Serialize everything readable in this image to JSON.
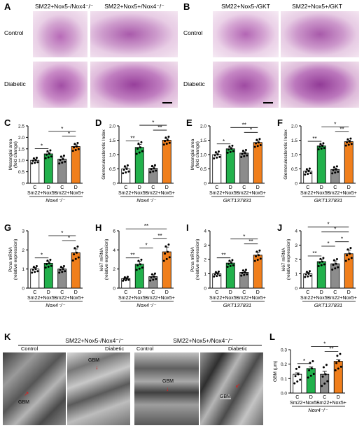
{
  "figure": {
    "panelA": {
      "letter": "A",
      "columns": [
        "SM22+Nox5-/Nox4⁻/⁻",
        "SM22+Nox5+/Nox4⁻/⁻"
      ],
      "rows": [
        "Control",
        "Diabetic"
      ]
    },
    "panelB": {
      "letter": "B",
      "columns": [
        "SM22+Nox5-/GKT",
        "SM22+Nox5+/GKT"
      ],
      "rows": [
        "Control",
        "Diabetic"
      ]
    },
    "panelK": {
      "letter": "K",
      "groups": [
        "SM22+Nox5-/Nox4⁻/⁻",
        "SM22+Nox5+/Nox4⁻/⁻"
      ],
      "conditions": [
        "Control",
        "Diabetic"
      ],
      "gbm_label": "GBM"
    },
    "colors": {
      "C_nox5neg": "#ffffff",
      "D_nox5neg": "#22b14c",
      "C_nox5pos": "#8c8c8c",
      "D_nox5pos": "#f07f1c",
      "he_stain": "#c98bc7",
      "tem": "#6a6a6a"
    }
  },
  "chart_data": [
    {
      "type": "bar",
      "panel": "C",
      "ylabel": "Mesangial area\n(fold change)",
      "ylim": [
        0,
        2.5
      ],
      "yticks": [
        "0",
        "0.5",
        "1.0",
        "1.5",
        "2.0",
        "2.5"
      ],
      "categories": [
        "C",
        "D",
        "C",
        "D"
      ],
      "values": [
        1.0,
        1.28,
        1.05,
        1.6
      ],
      "errors": [
        0.05,
        0.08,
        0.08,
        0.08
      ],
      "groups": [
        "Sm22+Nox5-",
        "Sm22+Nox5+"
      ],
      "footer": "Nox4⁻/⁻",
      "sig": [
        {
          "a": 0,
          "b": 1,
          "label": "*"
        },
        {
          "a": 2,
          "b": 3,
          "label": "*"
        },
        {
          "a": 1,
          "b": 3,
          "label": "*"
        }
      ]
    },
    {
      "type": "bar",
      "panel": "D",
      "ylabel": "Glomerulosclerotic Index",
      "ylim": [
        0,
        2.0
      ],
      "yticks": [
        "0",
        "0.5",
        "1.0",
        "1.5",
        "2.0"
      ],
      "categories": [
        "C",
        "D",
        "C",
        "D"
      ],
      "values": [
        0.5,
        1.25,
        0.52,
        1.5
      ],
      "errors": [
        0.06,
        0.1,
        0.05,
        0.06
      ],
      "groups": [
        "Sm22+Nox5-",
        "Sm22+Nox5+"
      ],
      "footer": "Nox4⁻/⁻",
      "sig": [
        {
          "a": 0,
          "b": 1,
          "label": "**"
        },
        {
          "a": 2,
          "b": 3,
          "label": "**"
        },
        {
          "a": 1,
          "b": 3,
          "label": "*"
        }
      ]
    },
    {
      "type": "bar",
      "panel": "E",
      "ylabel": "Mesangial area\n(fold change)",
      "ylim": [
        0,
        2.0
      ],
      "yticks": [
        "0",
        "0.5",
        "1.0",
        "1.5",
        "2.0"
      ],
      "categories": [
        "C",
        "D",
        "C",
        "D"
      ],
      "values": [
        1.0,
        1.2,
        1.05,
        1.42
      ],
      "errors": [
        0.05,
        0.05,
        0.05,
        0.06
      ],
      "groups": [
        "Sm22+Nox5-",
        "Sm22+Nox5+"
      ],
      "footer": "GKT137831",
      "sig": [
        {
          "a": 0,
          "b": 1,
          "label": "*"
        },
        {
          "a": 2,
          "b": 3,
          "label": "*"
        },
        {
          "a": 1,
          "b": 3,
          "label": "**"
        }
      ]
    },
    {
      "type": "bar",
      "panel": "F",
      "ylabel": "Glomerulosclerotic Index",
      "ylim": [
        0,
        2.0
      ],
      "yticks": [
        "0",
        "0.5",
        "1.0",
        "1.5",
        "2.0"
      ],
      "categories": [
        "C",
        "D",
        "C",
        "D"
      ],
      "values": [
        0.42,
        1.3,
        0.48,
        1.45
      ],
      "errors": [
        0.04,
        0.04,
        0.05,
        0.05
      ],
      "groups": [
        "Sm22+Nox5-",
        "Sm22+Nox5+"
      ],
      "footer": "GKT137831",
      "sig": [
        {
          "a": 0,
          "b": 1,
          "label": "**"
        },
        {
          "a": 2,
          "b": 3,
          "label": "**"
        },
        {
          "a": 1,
          "b": 3,
          "label": "*"
        }
      ]
    },
    {
      "type": "bar",
      "panel": "G",
      "ylabel": "Pcna mRNA\n(relative expression)",
      "ylim": [
        0,
        3
      ],
      "yticks": [
        "0",
        "1",
        "2",
        "3"
      ],
      "categories": [
        "C",
        "D",
        "C",
        "D"
      ],
      "values": [
        1.0,
        1.3,
        1.0,
        1.85
      ],
      "errors": [
        0.08,
        0.1,
        0.08,
        0.2
      ],
      "groups": [
        "Sm22+Nox5-",
        "Sm22+Nox5+"
      ],
      "footer": "Nox4⁻/⁻",
      "sig": [
        {
          "a": 0,
          "b": 1,
          "label": "*"
        },
        {
          "a": 2,
          "b": 3,
          "label": "*"
        },
        {
          "a": 1,
          "b": 3,
          "label": "*"
        }
      ]
    },
    {
      "type": "bar",
      "panel": "H",
      "ylabel": "ki67 mRNA\n(relative expression)",
      "ylim": [
        0,
        6
      ],
      "yticks": [
        "0",
        "2",
        "4",
        "6"
      ],
      "categories": [
        "C",
        "D",
        "C",
        "D"
      ],
      "values": [
        1.0,
        2.5,
        1.2,
        3.8
      ],
      "errors": [
        0.1,
        0.3,
        0.2,
        0.5
      ],
      "groups": [
        "Sm22+Nox5-",
        "Sm22+Nox5+"
      ],
      "footer": "Nox4⁻/⁻",
      "sig": [
        {
          "a": 0,
          "b": 1,
          "label": "**"
        },
        {
          "a": 2,
          "b": 3,
          "label": "**"
        },
        {
          "a": 1,
          "b": 2,
          "label": "*"
        },
        {
          "a": 0,
          "b": 3,
          "label": "**"
        }
      ]
    },
    {
      "type": "bar",
      "panel": "I",
      "ylabel": "Pcna mRNA\n(relative expression)",
      "ylim": [
        0,
        4
      ],
      "yticks": [
        "0",
        "1",
        "2",
        "3",
        "4"
      ],
      "categories": [
        "C",
        "D",
        "C",
        "D"
      ],
      "values": [
        1.0,
        1.75,
        1.1,
        2.3
      ],
      "errors": [
        0.08,
        0.12,
        0.1,
        0.2
      ],
      "groups": [
        "Sm22+Nox5-",
        "Sm22+Nox5+"
      ],
      "footer": "GKT137831",
      "sig": [
        {
          "a": 0,
          "b": 1,
          "label": "**"
        },
        {
          "a": 2,
          "b": 3,
          "label": "**"
        },
        {
          "a": 1,
          "b": 3,
          "label": "*"
        }
      ]
    },
    {
      "type": "bar",
      "panel": "J",
      "ylabel": "ki67 mRNA\n(relative expression)",
      "ylim": [
        0,
        4
      ],
      "yticks": [
        "0",
        "1",
        "2",
        "3",
        "4"
      ],
      "categories": [
        "C",
        "D",
        "C",
        "D"
      ],
      "values": [
        1.0,
        1.85,
        1.7,
        2.4
      ],
      "errors": [
        0.1,
        0.15,
        0.2,
        0.25
      ],
      "groups": [
        "Sm22+Nox5-",
        "Sm22+Nox5+"
      ],
      "footer": "GKT137831",
      "sig": [
        {
          "a": 0,
          "b": 1,
          "label": "**"
        },
        {
          "a": 2,
          "b": 3,
          "label": "*"
        },
        {
          "a": 1,
          "b": 2,
          "label": "*"
        },
        {
          "a": 1,
          "b": 3,
          "label": "*"
        },
        {
          "a": 0,
          "b": 3,
          "label": "*"
        }
      ]
    },
    {
      "type": "bar",
      "panel": "L",
      "ylabel": "GBM (µm)",
      "ylim": [
        0,
        0.3
      ],
      "yticks": [
        "0.0",
        "0.1",
        "0.2",
        "0.3"
      ],
      "categories": [
        "C",
        "D",
        "C",
        "D"
      ],
      "values": [
        0.13,
        0.17,
        0.13,
        0.22
      ],
      "errors": [
        0.01,
        0.01,
        0.02,
        0.01
      ],
      "groups": [
        "Sm22+Nox5-",
        "Sm22+Nox5+"
      ],
      "footer": "Nox4⁻/⁻",
      "sig": [
        {
          "a": 0,
          "b": 1,
          "label": "*"
        },
        {
          "a": 2,
          "b": 3,
          "label": "**"
        },
        {
          "a": 1,
          "b": 3,
          "label": "*"
        }
      ]
    }
  ]
}
